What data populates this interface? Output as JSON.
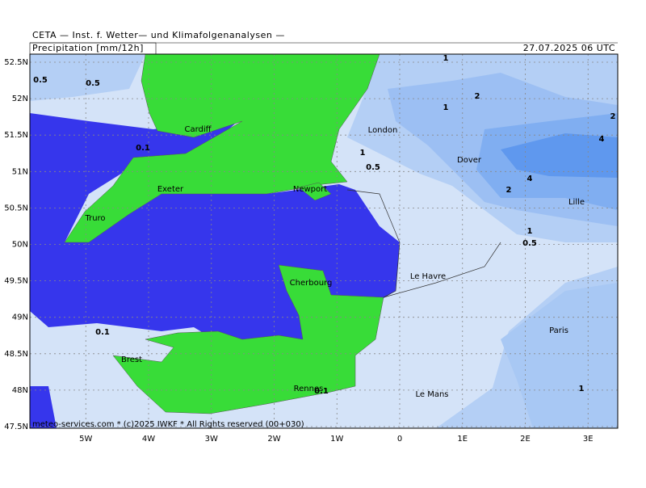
{
  "header": {
    "title": "CETA — Inst. f. Wetter— und Klimafolgenanalysen —",
    "field": "Precipitation [mm/12h]",
    "valid": "27.07.2025 06 UTC"
  },
  "map": {
    "lat_ticks": [
      {
        "value": 52.5,
        "label": "52.5N"
      },
      {
        "value": 52,
        "label": "52N"
      },
      {
        "value": 51.5,
        "label": "51.5N"
      },
      {
        "value": 51,
        "label": "51N"
      },
      {
        "value": 50.5,
        "label": "50.5N"
      },
      {
        "value": 50,
        "label": "50N"
      },
      {
        "value": 49.5,
        "label": "49.5N"
      },
      {
        "value": 49,
        "label": "49N"
      },
      {
        "value": 48.5,
        "label": "48.5N"
      },
      {
        "value": 48,
        "label": "48N"
      },
      {
        "value": 47.5,
        "label": "47.5N"
      }
    ],
    "lon_ticks": [
      {
        "value": -5,
        "label": "5W"
      },
      {
        "value": -4,
        "label": "4W"
      },
      {
        "value": -3,
        "label": "3W"
      },
      {
        "value": -2,
        "label": "2W"
      },
      {
        "value": -1,
        "label": "1W"
      },
      {
        "value": 0,
        "label": "0"
      },
      {
        "value": 1,
        "label": "1E"
      },
      {
        "value": 2,
        "label": "2E"
      },
      {
        "value": 3,
        "label": "3E"
      }
    ],
    "cities": [
      "Cardiff",
      "London",
      "Dover",
      "Exeter",
      "Newport",
      "Truro",
      "Lille",
      "Le Havre",
      "Cherbourg",
      "Brest",
      "Rennes",
      "Le Mans",
      "Paris"
    ],
    "contour_labels": [
      "0.5",
      "0.5",
      "1",
      "2",
      "1",
      "2",
      "0.1",
      "1",
      "0.5",
      "4",
      "4",
      "2",
      "1",
      "0.5",
      "0.1",
      "0.1",
      "1"
    ]
  },
  "footer": "meteo-services.com * (c)2025 IWKF * All Rights reserved (00+030)"
}
